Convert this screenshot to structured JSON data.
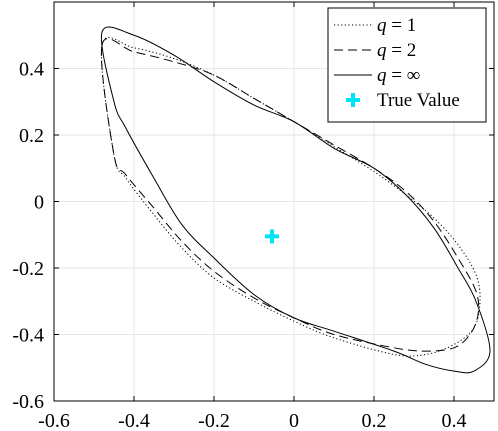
{
  "chart_data": {
    "type": "line",
    "xlim": [
      -0.6,
      0.5
    ],
    "ylim": [
      -0.6,
      0.6
    ],
    "xticks": [
      -0.6,
      -0.4,
      -0.2,
      0,
      0.2,
      0.4
    ],
    "yticks": [
      -0.6,
      -0.4,
      -0.2,
      0,
      0.2,
      0.4
    ],
    "xtick_labels": [
      "-0.6",
      "-0.4",
      "-0.2",
      "0",
      "0.2",
      "0.4"
    ],
    "ytick_labels": [
      "-0.6",
      "-0.4",
      "-0.2",
      "0",
      "0.2",
      "0.4"
    ],
    "grid": true,
    "legend_position": "top-right",
    "series": [
      {
        "name": "q = 1",
        "legend_var": "q",
        "legend_rhs": " = 1",
        "style": "dotted",
        "points": [
          [
            -0.48,
            0.47
          ],
          [
            -0.4,
            0.462
          ],
          [
            -0.3,
            0.43
          ],
          [
            -0.2,
            0.38
          ],
          [
            -0.1,
            0.31
          ],
          [
            0.0,
            0.24
          ],
          [
            0.1,
            0.165
          ],
          [
            0.2,
            0.09
          ],
          [
            0.28,
            0.02
          ],
          [
            0.35,
            -0.05
          ],
          [
            0.41,
            -0.13
          ],
          [
            0.455,
            -0.22
          ],
          [
            0.465,
            -0.3
          ],
          [
            0.45,
            -0.38
          ],
          [
            0.4,
            -0.43
          ],
          [
            0.33,
            -0.46
          ],
          [
            0.25,
            -0.46
          ],
          [
            0.1,
            -0.41
          ],
          [
            0.0,
            -0.36
          ],
          [
            -0.1,
            -0.3
          ],
          [
            -0.2,
            -0.23
          ],
          [
            -0.28,
            -0.14
          ],
          [
            -0.35,
            -0.04
          ],
          [
            -0.42,
            0.07
          ],
          [
            -0.45,
            0.14
          ]
        ]
      },
      {
        "name": "q = 2",
        "legend_var": "q",
        "legend_rhs": " = 2",
        "style": "dashed",
        "points": [
          [
            -0.48,
            0.47
          ],
          [
            -0.4,
            0.45
          ],
          [
            -0.3,
            0.42
          ],
          [
            -0.2,
            0.38
          ],
          [
            -0.1,
            0.31
          ],
          [
            0.0,
            0.24
          ],
          [
            0.1,
            0.17
          ],
          [
            0.2,
            0.1
          ],
          [
            0.28,
            0.03
          ],
          [
            0.35,
            -0.06
          ],
          [
            0.41,
            -0.17
          ],
          [
            0.455,
            -0.27
          ],
          [
            0.46,
            -0.34
          ],
          [
            0.44,
            -0.4
          ],
          [
            0.4,
            -0.44
          ],
          [
            0.33,
            -0.45
          ],
          [
            0.25,
            -0.44
          ],
          [
            0.1,
            -0.4
          ],
          [
            0.0,
            -0.35
          ],
          [
            -0.1,
            -0.29
          ],
          [
            -0.2,
            -0.21
          ],
          [
            -0.28,
            -0.12
          ],
          [
            -0.35,
            -0.02
          ],
          [
            -0.42,
            0.08
          ],
          [
            -0.45,
            0.14
          ]
        ]
      },
      {
        "name": "q = ∞",
        "legend_var": "q",
        "legend_rhs": " = ∞",
        "style": "solid",
        "points": [
          [
            -0.48,
            0.51
          ],
          [
            -0.4,
            0.5
          ],
          [
            -0.3,
            0.44
          ],
          [
            -0.2,
            0.36
          ],
          [
            -0.1,
            0.29
          ],
          [
            0.0,
            0.24
          ],
          [
            0.1,
            0.16
          ],
          [
            0.2,
            0.1
          ],
          [
            0.28,
            0.02
          ],
          [
            0.35,
            -0.08
          ],
          [
            0.41,
            -0.2
          ],
          [
            0.455,
            -0.3
          ],
          [
            0.49,
            -0.45
          ],
          [
            0.45,
            -0.51
          ],
          [
            0.4,
            -0.51
          ],
          [
            0.33,
            -0.49
          ],
          [
            0.25,
            -0.45
          ],
          [
            0.1,
            -0.39
          ],
          [
            0.0,
            -0.35
          ],
          [
            -0.1,
            -0.28
          ],
          [
            -0.2,
            -0.17
          ],
          [
            -0.28,
            -0.07
          ],
          [
            -0.35,
            0.07
          ],
          [
            -0.42,
            0.22
          ],
          [
            -0.45,
            0.3
          ]
        ]
      }
    ],
    "markers": [
      {
        "name": "True Value",
        "x": -0.055,
        "y": -0.105,
        "color": "#00e5f5",
        "symbol": "plus"
      }
    ]
  }
}
